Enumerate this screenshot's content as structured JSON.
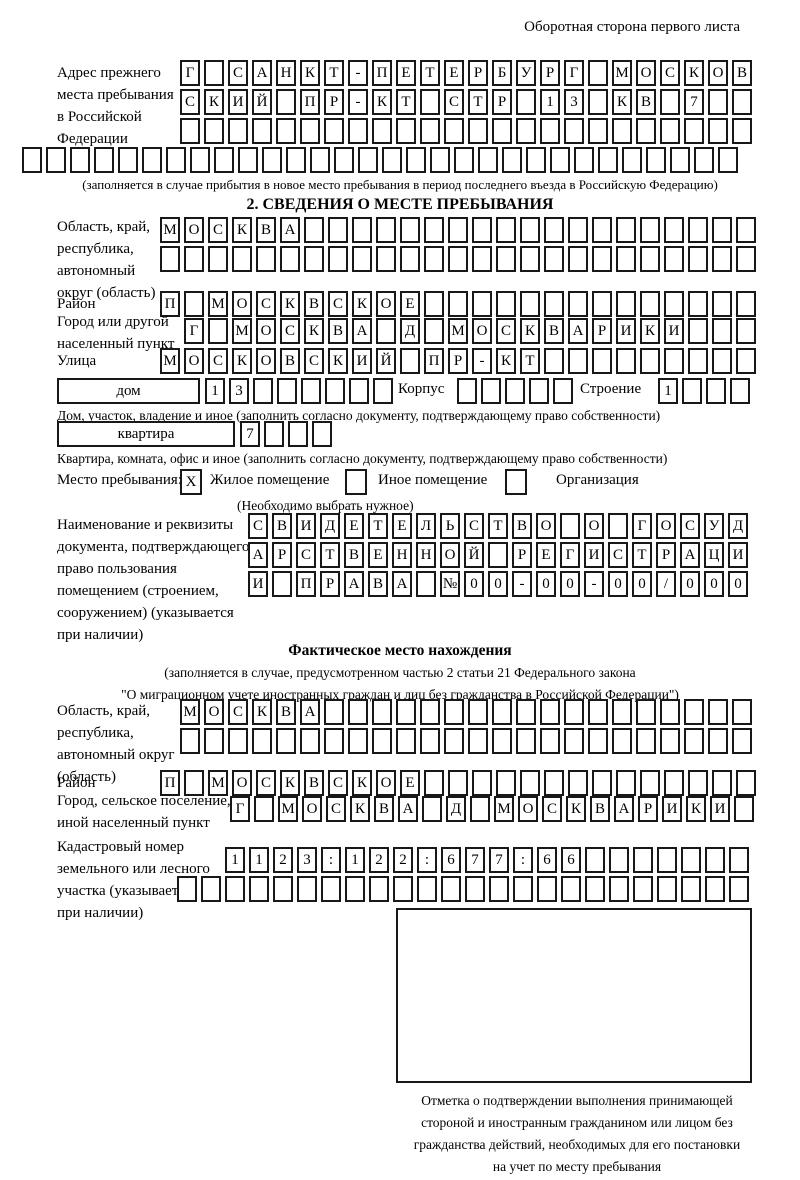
{
  "header": {
    "note": "Оборотная сторона первого листа"
  },
  "prev_address": {
    "label": "Адрес прежнего\nместа пребывания\nв Российской\nФедерации",
    "row1": [
      "Г",
      "",
      "С",
      "А",
      "Н",
      "К",
      "Т",
      "-",
      "П",
      "Е",
      "Т",
      "Е",
      "Р",
      "Б",
      "У",
      "Р",
      "Г",
      "",
      "М",
      "О",
      "С",
      "К",
      "О",
      "В"
    ],
    "row2": [
      "С",
      "К",
      "И",
      "Й",
      "",
      "П",
      "Р",
      "-",
      "К",
      "Т",
      "",
      "С",
      "Т",
      "Р",
      "",
      "1",
      "3",
      "",
      "К",
      "В",
      "",
      "7",
      "",
      ""
    ],
    "row3": [
      "",
      "",
      "",
      "",
      "",
      "",
      "",
      "",
      "",
      "",
      "",
      "",
      "",
      "",
      "",
      "",
      "",
      "",
      "",
      "",
      "",
      "",
      "",
      ""
    ],
    "row4": [
      "",
      "",
      "",
      "",
      "",
      "",
      "",
      "",
      "",
      "",
      "",
      "",
      "",
      "",
      "",
      "",
      "",
      "",
      "",
      "",
      "",
      "",
      "",
      "",
      "",
      "",
      "",
      "",
      "",
      ""
    ],
    "note": "(заполняется в случае прибытия в новое место пребывания в период последнего въезда в Российскую Федерацию)"
  },
  "section2": {
    "title": "2. СВЕДЕНИЯ О МЕСТЕ ПРЕБЫВАНИЯ",
    "region": {
      "label": "Область, край,\nреспублика,\nавтономный\nокруг (область)",
      "row1": [
        "М",
        "О",
        "С",
        "К",
        "В",
        "А",
        "",
        "",
        "",
        "",
        "",
        "",
        "",
        "",
        "",
        "",
        "",
        "",
        "",
        "",
        "",
        "",
        "",
        "",
        ""
      ],
      "row2": [
        "",
        "",
        "",
        "",
        "",
        "",
        "",
        "",
        "",
        "",
        "",
        "",
        "",
        "",
        "",
        "",
        "",
        "",
        "",
        "",
        "",
        "",
        "",
        "",
        ""
      ]
    },
    "district": {
      "label": "Район",
      "cells": [
        "П",
        "",
        "М",
        "О",
        "С",
        "К",
        "В",
        "С",
        "К",
        "О",
        "Е",
        "",
        "",
        "",
        "",
        "",
        "",
        "",
        "",
        "",
        "",
        "",
        "",
        "",
        ""
      ]
    },
    "city": {
      "label": "Город или другой\nнаселенный пункт",
      "cells": [
        "Г",
        "",
        "М",
        "О",
        "С",
        "К",
        "В",
        "А",
        "",
        "Д",
        "",
        "М",
        "О",
        "С",
        "К",
        "В",
        "А",
        "Р",
        "И",
        "К",
        "И",
        "",
        "",
        ""
      ]
    },
    "street": {
      "label": "Улица",
      "cells": [
        "М",
        "О",
        "С",
        "К",
        "О",
        "В",
        "С",
        "К",
        "И",
        "Й",
        "",
        "П",
        "Р",
        "-",
        "К",
        "Т",
        "",
        "",
        "",
        "",
        "",
        "",
        "",
        "",
        ""
      ]
    },
    "house": {
      "box_label": "дом",
      "cells": [
        "1",
        "3",
        "",
        "",
        "",
        "",
        "",
        ""
      ],
      "korpus_label": "Корпус",
      "korpus_cells": [
        "",
        "",
        "",
        "",
        ""
      ],
      "stroenie_label": "Строение",
      "stroenie_cells": [
        "1",
        "",
        "",
        ""
      ]
    },
    "house_note": "Дом, участок, владение и иное (заполнить согласно документу, подтверждающему право собственности)",
    "apartment": {
      "box_label": "квартира",
      "cells": [
        "7",
        "",
        "",
        ""
      ]
    },
    "apartment_note": "Квартира, комната, офис и иное (заполнить согласно документу, подтверждающему право собственности)",
    "stay_type": {
      "label": "Место пребывания:",
      "residential": {
        "label": "Жилое помещение",
        "mark": "X"
      },
      "other": {
        "label": "Иное помещение",
        "mark": ""
      },
      "organization": {
        "label": "Организация",
        "mark": ""
      },
      "choose_note": "(Необходимо выбрать нужное)"
    },
    "doc": {
      "label": "Наименование и реквизиты\nдокумента, подтверждающего\nправо пользования\nпомещением (строением,\nсооружением) (указывается\nпри наличии)",
      "row1": [
        "С",
        "В",
        "И",
        "Д",
        "Е",
        "Т",
        "Е",
        "Л",
        "Ь",
        "С",
        "Т",
        "В",
        "О",
        "",
        "О",
        "",
        "Г",
        "О",
        "С",
        "У",
        "Д"
      ],
      "row2": [
        "А",
        "Р",
        "С",
        "Т",
        "В",
        "Е",
        "Н",
        "Н",
        "О",
        "Й",
        "",
        "Р",
        "Е",
        "Г",
        "И",
        "С",
        "Т",
        "Р",
        "А",
        "Ц",
        "И"
      ],
      "row3": [
        "И",
        "",
        "П",
        "Р",
        "А",
        "В",
        "А",
        "",
        "№",
        "0",
        "0",
        "-",
        "0",
        "0",
        "-",
        "0",
        "0",
        "/",
        "0",
        "0",
        "0"
      ]
    }
  },
  "section3": {
    "title": "Фактическое место нахождения",
    "intro1": "(заполняется в случае, предусмотренном частью 2 статьи 21 Федерального закона",
    "intro2": "\"О миграционном учете иностранных граждан и лиц без гражданства в Российской Федерации\")",
    "region": {
      "label": "Область, край,\nреспублика,\nавтономный округ\n(область)",
      "row1": [
        "М",
        "О",
        "С",
        "К",
        "В",
        "А",
        "",
        "",
        "",
        "",
        "",
        "",
        "",
        "",
        "",
        "",
        "",
        "",
        "",
        "",
        "",
        "",
        "",
        ""
      ],
      "row2": [
        "",
        "",
        "",
        "",
        "",
        "",
        "",
        "",
        "",
        "",
        "",
        "",
        "",
        "",
        "",
        "",
        "",
        "",
        "",
        "",
        "",
        "",
        "",
        ""
      ]
    },
    "district": {
      "label": "Район",
      "cells": [
        "П",
        "",
        "М",
        "О",
        "С",
        "К",
        "В",
        "С",
        "К",
        "О",
        "Е",
        "",
        "",
        "",
        "",
        "",
        "",
        "",
        "",
        "",
        "",
        "",
        "",
        "",
        ""
      ]
    },
    "city": {
      "label": "Город, сельское поселение,\nиной населенный пункт",
      "cells": [
        "Г",
        "",
        "М",
        "О",
        "С",
        "К",
        "В",
        "А",
        "",
        "Д",
        "",
        "М",
        "О",
        "С",
        "К",
        "В",
        "А",
        "Р",
        "И",
        "К",
        "И",
        ""
      ]
    },
    "cadastre": {
      "label": "Кадастровый номер\nземельного или лесного\nучастка (указывается\nпри наличии)",
      "row1": [
        "1",
        "1",
        "2",
        "3",
        ":",
        "1",
        "2",
        "2",
        ":",
        "6",
        "7",
        "7",
        ":",
        "6",
        "6",
        "",
        "",
        "",
        "",
        "",
        "",
        ""
      ],
      "row2": [
        "",
        "",
        "",
        "",
        "",
        "",
        "",
        "",
        "",
        "",
        "",
        "",
        "",
        "",
        "",
        "",
        "",
        "",
        "",
        "",
        "",
        "",
        "",
        ""
      ]
    },
    "stamp_caption": "Отметка о подтверждении выполнения принимающей\nстороной и иностранным гражданином или лицом без\nгражданства действий, необходимых для его постановки\nна учет по месту пребывания"
  }
}
